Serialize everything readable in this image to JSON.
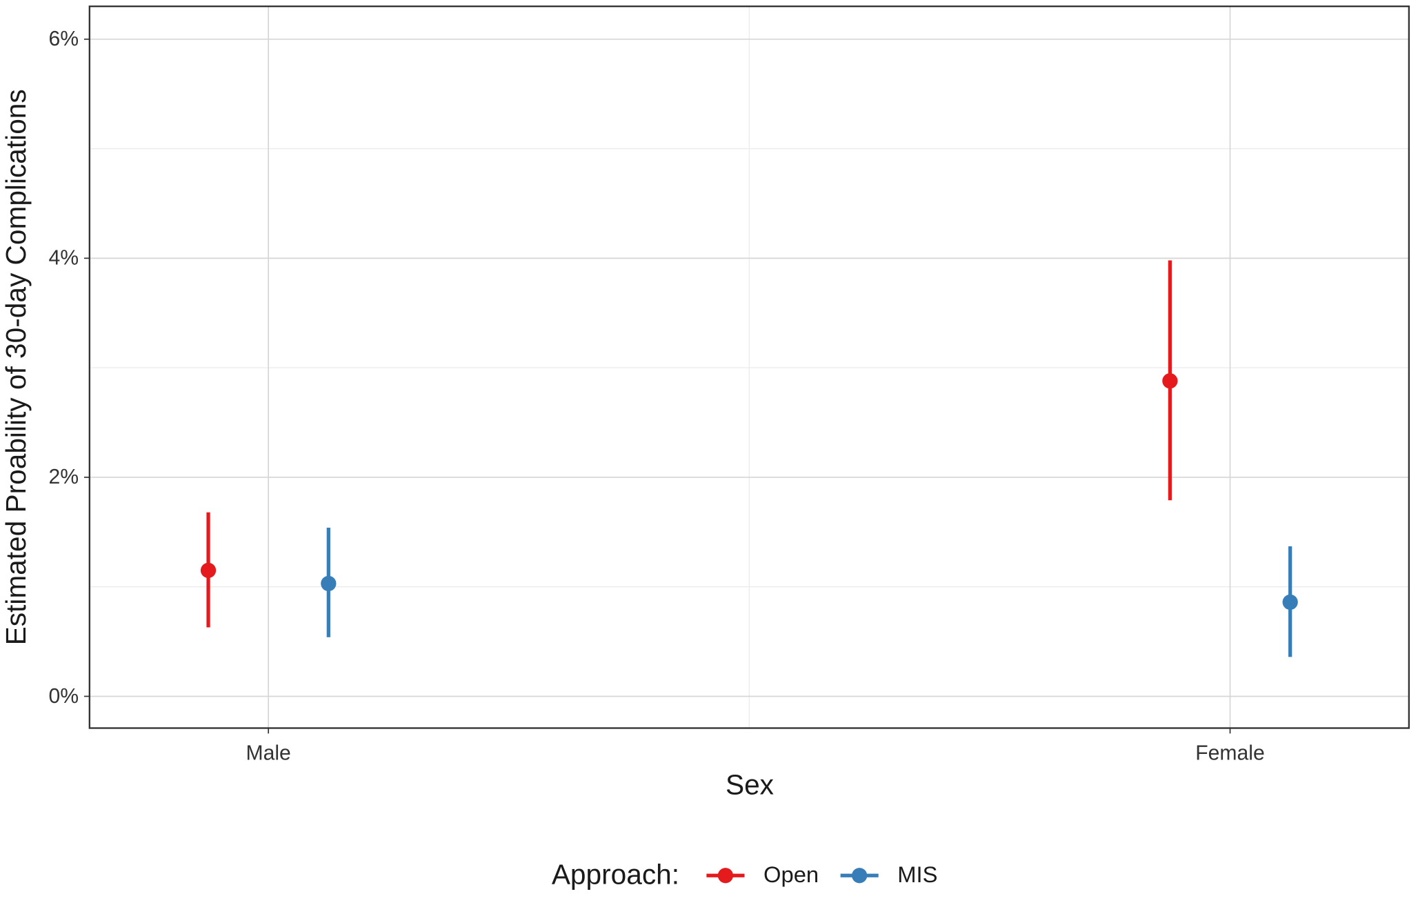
{
  "chart_data": {
    "type": "pointrange",
    "x_label": "Sex",
    "y_label": "Estimated Proability of 30-day Complications",
    "categories": [
      "Male",
      "Female"
    ],
    "series": [
      {
        "name": "Open",
        "color": "#e41a1c",
        "values": [
          1.15,
          2.88
        ],
        "lower": [
          0.63,
          1.79
        ],
        "upper": [
          1.68,
          3.98
        ]
      },
      {
        "name": "MIS",
        "color": "#377eb8",
        "values": [
          1.03,
          0.86
        ],
        "lower": [
          0.54,
          0.36
        ],
        "upper": [
          1.54,
          1.37
        ]
      }
    ],
    "ylim": [
      -0.29,
      6.3
    ],
    "yticks": [
      {
        "value": 0,
        "label": "0%"
      },
      {
        "value": 2,
        "label": "2%"
      },
      {
        "value": 4,
        "label": "4%"
      },
      {
        "value": 6,
        "label": "6%"
      }
    ],
    "minor_yticks": [
      1,
      3,
      5
    ],
    "grid": true,
    "legend_title": "Approach:",
    "legend_position": "bottom"
  }
}
